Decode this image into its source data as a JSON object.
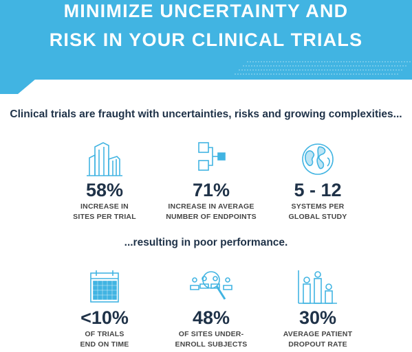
{
  "header": {
    "title_line1": "MINIMIZE UNCERTAINTY AND",
    "title_line2": "RISK IN YOUR CLINICAL TRIALS"
  },
  "intro_text": "Clinical trials are fraught with uncertainties, risks and growing complexities...",
  "result_text": "...resulting in poor performance.",
  "colors": {
    "banner": "#41b4e2",
    "icon": "#41b4e2",
    "value": "#1f3248",
    "label": "#454545"
  },
  "stats_top": [
    {
      "icon": "buildings-icon",
      "value": "58%",
      "label_line1": "INCREASE IN",
      "label_line2": "SITES PER TRIAL"
    },
    {
      "icon": "endpoints-flow-icon",
      "value": "71%",
      "label_line1": "INCREASE IN AVERAGE",
      "label_line2": "NUMBER OF ENDPOINTS"
    },
    {
      "icon": "globe-icon",
      "value": "5 - 12",
      "label_line1": "SYSTEMS PER",
      "label_line2": "GLOBAL STUDY"
    }
  ],
  "stats_bottom": [
    {
      "icon": "calendar-icon",
      "value": "<10%",
      "label_line1": "OF TRIALS",
      "label_line2": "END ON TIME"
    },
    {
      "icon": "magnifier-people-icon",
      "value": "48%",
      "label_line1": "OF SITES UNDER-",
      "label_line2": "ENROLL SUBJECTS"
    },
    {
      "icon": "people-bars-icon",
      "value": "30%",
      "label_line1": "AVERAGE PATIENT",
      "label_line2": "DROPOUT RATE"
    }
  ]
}
